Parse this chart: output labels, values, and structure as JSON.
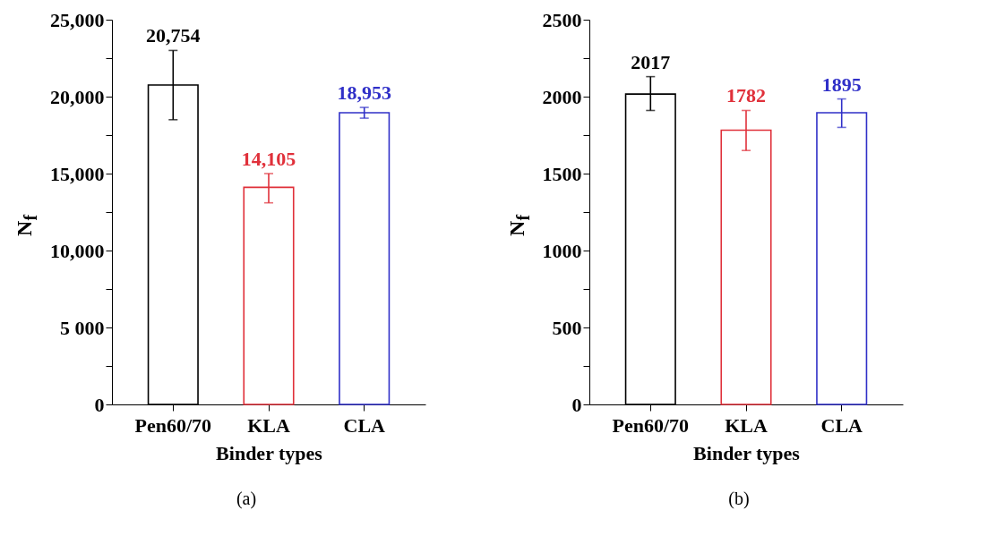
{
  "chart_data": [
    {
      "type": "bar",
      "xlabel": "Binder types",
      "ylabel": "N$_{f}$",
      "categories": [
        "Pen60/70",
        "KLA",
        "CLA"
      ],
      "values": [
        20754,
        14105,
        18953
      ],
      "colors": [
        "#000000",
        "#e0303a",
        "#3030c8"
      ],
      "value_labels": [
        "20,754",
        "14,105",
        "18,953"
      ],
      "errors": [
        [
          18500,
          23000
        ],
        [
          13100,
          15000
        ],
        [
          18600,
          19300
        ]
      ],
      "ylim": [
        0,
        25000
      ],
      "yticks": [
        0,
        {
          "value": 2500,
          "label": null
        },
        {
          "value": 5000,
          "label": "5 000"
        },
        {
          "value": 7500,
          "label": null
        },
        {
          "value": 10000,
          "label": "10,000"
        },
        {
          "value": 12500,
          "label": null
        },
        {
          "value": 15000,
          "label": "15,000"
        },
        {
          "value": 17500,
          "label": null
        },
        {
          "value": 20000,
          "label": "20,000"
        },
        {
          "value": 22500,
          "label": null
        },
        {
          "value": 25000,
          "label": "25,000"
        }
      ],
      "grid": false,
      "annotations": [
        "(a)"
      ]
    },
    {
      "type": "bar",
      "xlabel": "Binder types",
      "ylabel": "N$_{f}$",
      "categories": [
        "Pen60/70",
        "KLA",
        "CLA"
      ],
      "values": [
        2017,
        1782,
        1895
      ],
      "colors": [
        "#000000",
        "#e0303a",
        "#3030c8"
      ],
      "data_labels": true,
      "errors": [
        [
          1910,
          2130
        ],
        [
          1650,
          1910
        ],
        [
          1800,
          1985
        ]
      ],
      "ylim": [
        0,
        2500
      ],
      "yticks": [
        0,
        {
          "value": 250,
          "label": null
        },
        500,
        {
          "value": 750,
          "label": null
        },
        1000,
        {
          "value": 1250,
          "label": null
        },
        1500,
        {
          "value": 1750,
          "label": null
        },
        2000,
        {
          "value": 2250,
          "label": null
        },
        2500
      ],
      "grid": false,
      "annotations": [
        "(b)"
      ]
    }
  ]
}
